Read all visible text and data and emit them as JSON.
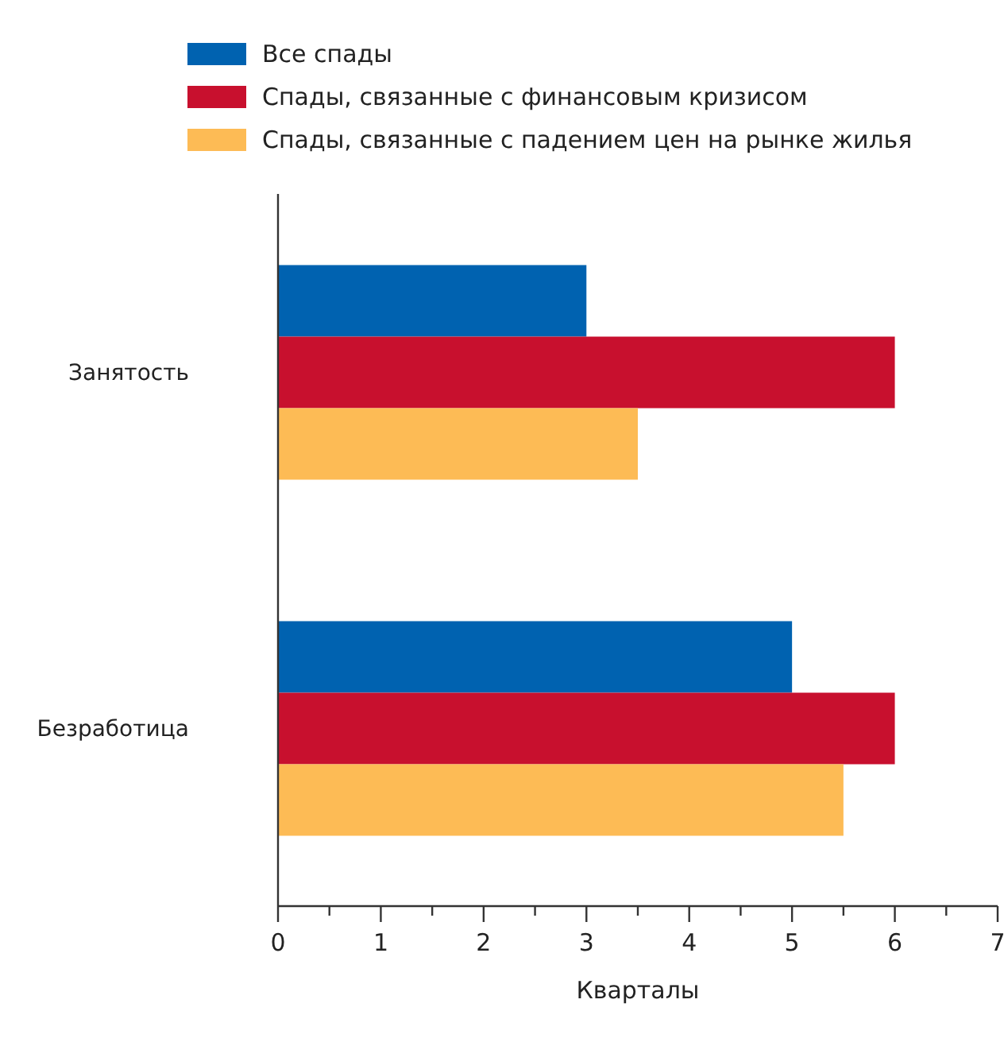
{
  "chart_data": {
    "type": "bar",
    "orientation": "horizontal",
    "xlabel": "Кварталы",
    "categories": [
      "Занятость",
      "Безработица"
    ],
    "series": [
      {
        "name": "Все спады",
        "color": "#0062b0",
        "values": [
          3,
          5
        ]
      },
      {
        "name": "Спады, связанные с финансовым кризисом",
        "color": "#c8102e",
        "values": [
          6,
          6
        ]
      },
      {
        "name": "Спады, связанные с падением цен на рынке жилья",
        "color": "#fdbb55",
        "values": [
          3.5,
          5.5
        ]
      }
    ],
    "xlim": [
      0,
      7
    ],
    "xticks": [
      0,
      {
        "value": 0.5,
        "label": null
      },
      1,
      {
        "value": 1.5,
        "label": null
      },
      2,
      {
        "value": 2.5,
        "label": null
      },
      3,
      {
        "value": 3.5,
        "label": null
      },
      4,
      {
        "value": 4.5,
        "label": null
      },
      5,
      {
        "value": 5.5,
        "label": null
      },
      6,
      {
        "value": 6.5,
        "label": null
      },
      7
    ],
    "grid": false,
    "legend": "top left"
  }
}
